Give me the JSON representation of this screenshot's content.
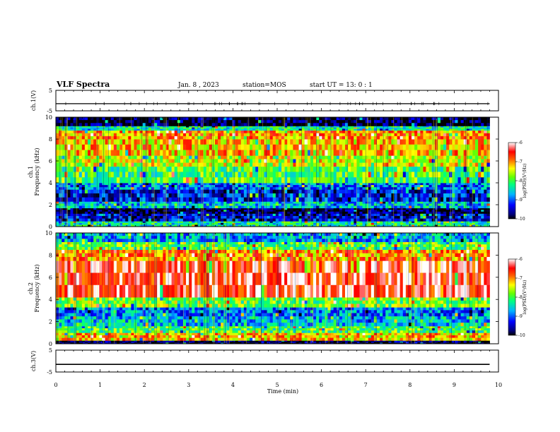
{
  "header": {
    "title": "VLF Spectra",
    "date": "Jan. 8 , 2023",
    "station": "station=MOS",
    "start": "start UT = 13: 0 : 1"
  },
  "chart_data": [
    {
      "type": "line",
      "name": "ch1-voltage",
      "ylabel": "ch.1(V)",
      "ylim": [
        -5,
        5
      ],
      "yticks": [
        "5",
        "-5"
      ],
      "xlim": [
        0,
        10
      ],
      "x": [
        0,
        9.8
      ],
      "y": [
        -1.5,
        -1.5
      ]
    },
    {
      "type": "heatmap",
      "name": "ch1-spectrogram",
      "ylabel": "ch.1\nFrequency (kHz)",
      "ylim": [
        0,
        10
      ],
      "yticks": [
        "0",
        "2",
        "4",
        "6",
        "8",
        "10"
      ],
      "xlim": [
        0,
        10
      ],
      "data_xmax": 9.8,
      "colorbar": {
        "label": "log(PSD)(V²/Hz)",
        "range": [
          -10,
          -6
        ],
        "ticks": [
          "-6",
          "-7",
          "-8",
          "-9",
          "-10"
        ]
      },
      "bands": [
        {
          "f": [
            0.0,
            0.5
          ],
          "v": -8.3
        },
        {
          "f": [
            0.5,
            1.2
          ],
          "v": -9.4
        },
        {
          "f": [
            1.2,
            1.7
          ],
          "v": -9.9
        },
        {
          "f": [
            1.7,
            2.3
          ],
          "v": -8.6
        },
        {
          "f": [
            2.3,
            3.4
          ],
          "v": -9.3
        },
        {
          "f": [
            3.4,
            4.0
          ],
          "v": -8.9
        },
        {
          "f": [
            4.0,
            5.5
          ],
          "v": -8.0
        },
        {
          "f": [
            5.5,
            6.5
          ],
          "v": -7.5
        },
        {
          "f": [
            6.5,
            8.0
          ],
          "v": -7.2
        },
        {
          "f": [
            8.0,
            8.8
          ],
          "v": -7.0
        },
        {
          "f": [
            8.8,
            9.2
          ],
          "v": -8.3
        },
        {
          "f": [
            9.2,
            10.0
          ],
          "v": -9.9
        }
      ]
    },
    {
      "type": "heatmap",
      "name": "ch2-spectrogram",
      "ylabel": "ch.2\nFrequency (kHz)",
      "ylim": [
        0,
        10
      ],
      "yticks": [
        "0",
        "2",
        "4",
        "6",
        "8",
        "10"
      ],
      "xlim": [
        0,
        10
      ],
      "data_xmax": 9.8,
      "colorbar": {
        "label": "log(PSD)(V²/Hz)",
        "range": [
          -10,
          -6
        ],
        "ticks": [
          "-6",
          "-7",
          "-8",
          "-9",
          "-10"
        ]
      },
      "bands": [
        {
          "f": [
            0.0,
            0.3
          ],
          "v": -9.8
        },
        {
          "f": [
            0.3,
            1.0
          ],
          "v": -7.2
        },
        {
          "f": [
            1.0,
            1.6
          ],
          "v": -8.0
        },
        {
          "f": [
            1.6,
            2.5
          ],
          "v": -8.6
        },
        {
          "f": [
            2.5,
            3.3
          ],
          "v": -8.9
        },
        {
          "f": [
            3.3,
            4.2
          ],
          "v": -7.8
        },
        {
          "f": [
            4.2,
            7.5
          ],
          "v": -6.4
        },
        {
          "f": [
            7.5,
            8.5
          ],
          "v": -7.0
        },
        {
          "f": [
            8.5,
            9.2
          ],
          "v": -7.9
        },
        {
          "f": [
            9.2,
            10.0
          ],
          "v": -8.7
        }
      ]
    },
    {
      "type": "line",
      "name": "ch3-voltage",
      "ylabel": "ch.3(V)",
      "ylim": [
        -5,
        5
      ],
      "yticks": [
        "5",
        "-5"
      ],
      "xlim": [
        0,
        10
      ],
      "x": [
        0,
        9.8
      ],
      "y": [
        -1.5,
        -1.5
      ]
    }
  ],
  "x_axis": {
    "label": "Time (min)",
    "ticks": [
      "0",
      "1",
      "2",
      "3",
      "4",
      "5",
      "6",
      "7",
      "8",
      "9",
      "10"
    ]
  }
}
